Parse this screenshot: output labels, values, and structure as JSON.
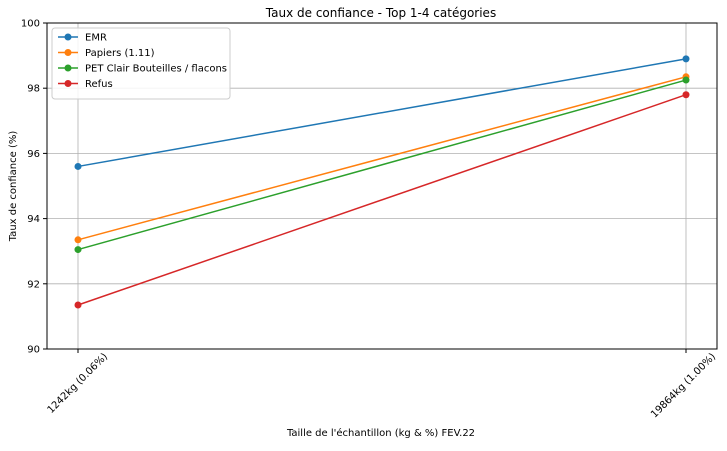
{
  "chart_data": {
    "type": "line",
    "title": "Taux de confiance - Top 1-4 catégories",
    "xlabel": "Taille de l'échantillon (kg & %) FEV.22",
    "ylabel": "Taux de confiance (%)",
    "categories": [
      "1242kg (0.06%)",
      "19864kg (1.00%)"
    ],
    "ylim": [
      90,
      100
    ],
    "yticks": [
      90,
      92,
      94,
      96,
      98,
      100
    ],
    "grid": true,
    "legend_position": "top-left",
    "series": [
      {
        "name": "EMR",
        "values": [
          95.6,
          98.9
        ],
        "color": "#1f77b4"
      },
      {
        "name": "Papiers (1.11)",
        "values": [
          93.35,
          98.35
        ],
        "color": "#ff7f0e"
      },
      {
        "name": "PET Clair Bouteilles / flacons",
        "values": [
          93.05,
          98.25
        ],
        "color": "#2ca02c"
      },
      {
        "name": "Refus",
        "values": [
          91.35,
          97.8
        ],
        "color": "#d62728"
      }
    ]
  }
}
